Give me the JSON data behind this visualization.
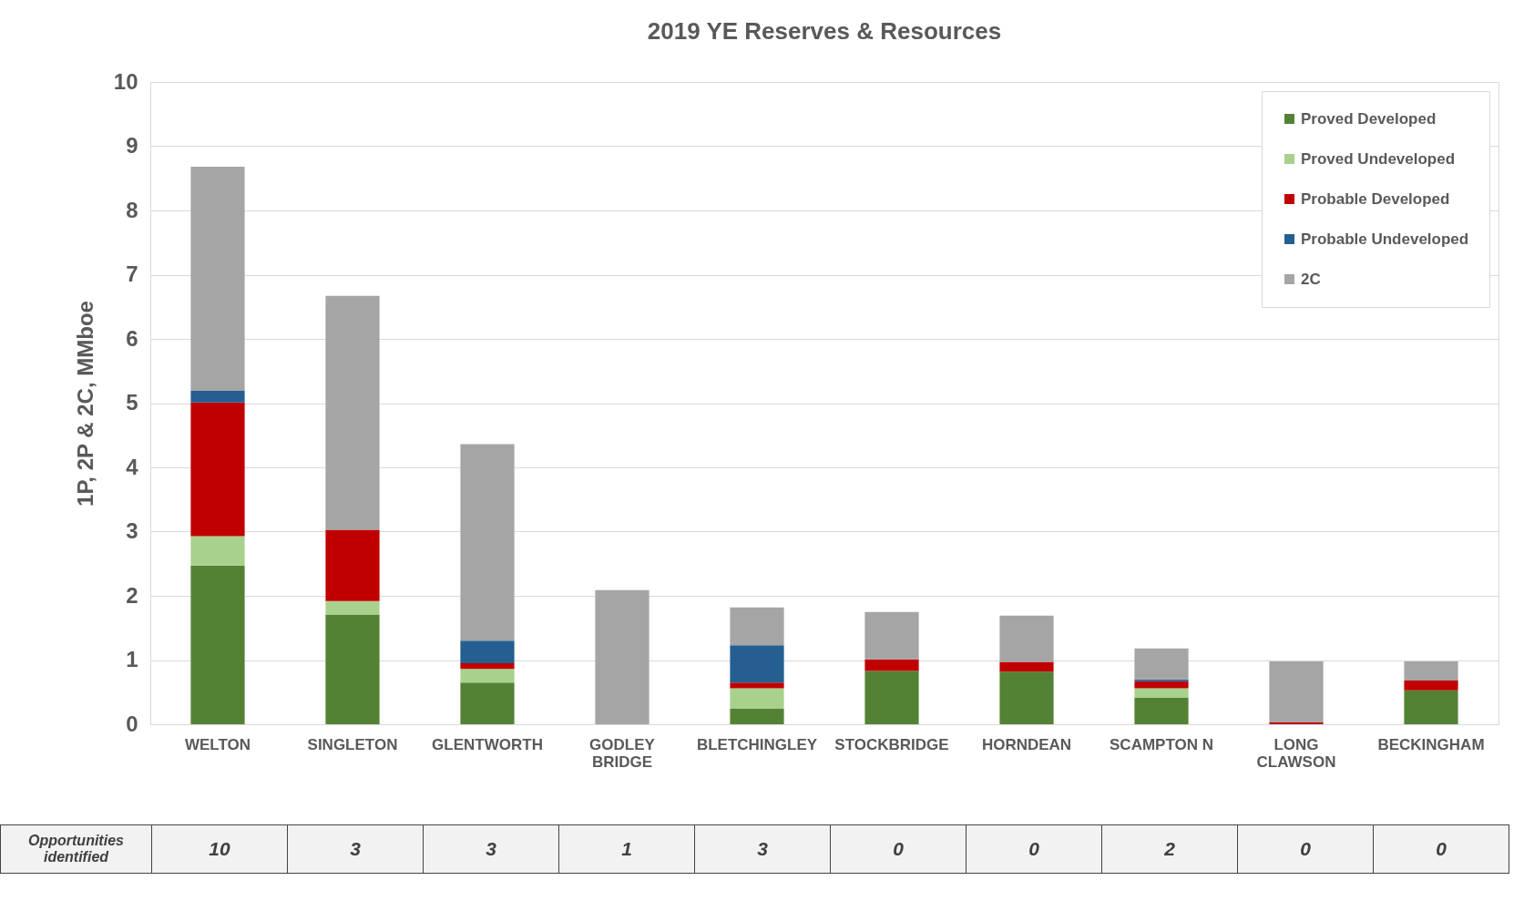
{
  "chart_data": {
    "type": "bar",
    "title": "2019 YE Reserves & Resources",
    "ylabel": "1P, 2P & 2C, MMboe",
    "categories": [
      "WELTON",
      "SINGLETON",
      "GLENTWORTH",
      "GODLEY BRIDGE",
      "BLETCHINGLEY",
      "STOCKBRIDGE",
      "HORNDEAN",
      "SCAMPTON N",
      "LONG CLAWSON",
      "BECKINGHAM"
    ],
    "stacked": true,
    "series": [
      {
        "name": "Proved Developed",
        "color": "#548235",
        "values": [
          2.47,
          1.71,
          0.65,
          0,
          0.24,
          0.83,
          0.82,
          0.41,
          0,
          0.53
        ]
      },
      {
        "name": "Proved Undeveloped",
        "color": "#a9d18e",
        "values": [
          0.46,
          0.21,
          0.21,
          0,
          0.32,
          0,
          0,
          0.15,
          0,
          0
        ]
      },
      {
        "name": "Probable Developed",
        "color": "#c00000",
        "values": [
          2.08,
          1.11,
          0.09,
          0,
          0.09,
          0.18,
          0.15,
          0.11,
          0.03,
          0.15
        ]
      },
      {
        "name": "Probable Undeveloped",
        "color": "#255e91",
        "values": [
          0.18,
          0,
          0.35,
          0,
          0.58,
          0,
          0,
          0.03,
          0,
          0
        ]
      },
      {
        "name": "2C",
        "color": "#a5a5a5",
        "values": [
          3.49,
          3.64,
          3.06,
          2.09,
          0.59,
          0.74,
          0.72,
          0.48,
          0.95,
          0.3
        ]
      }
    ],
    "ylim": [
      0,
      10
    ],
    "yticks": [
      0,
      1,
      2,
      3,
      4,
      5,
      6,
      7,
      8,
      9,
      10
    ],
    "grid": "y",
    "legend": "top right",
    "annotations": [
      "Opportunities identified",
      "10",
      "3",
      "3",
      "1",
      "3",
      "0",
      "0",
      "2",
      "0",
      "0"
    ]
  }
}
